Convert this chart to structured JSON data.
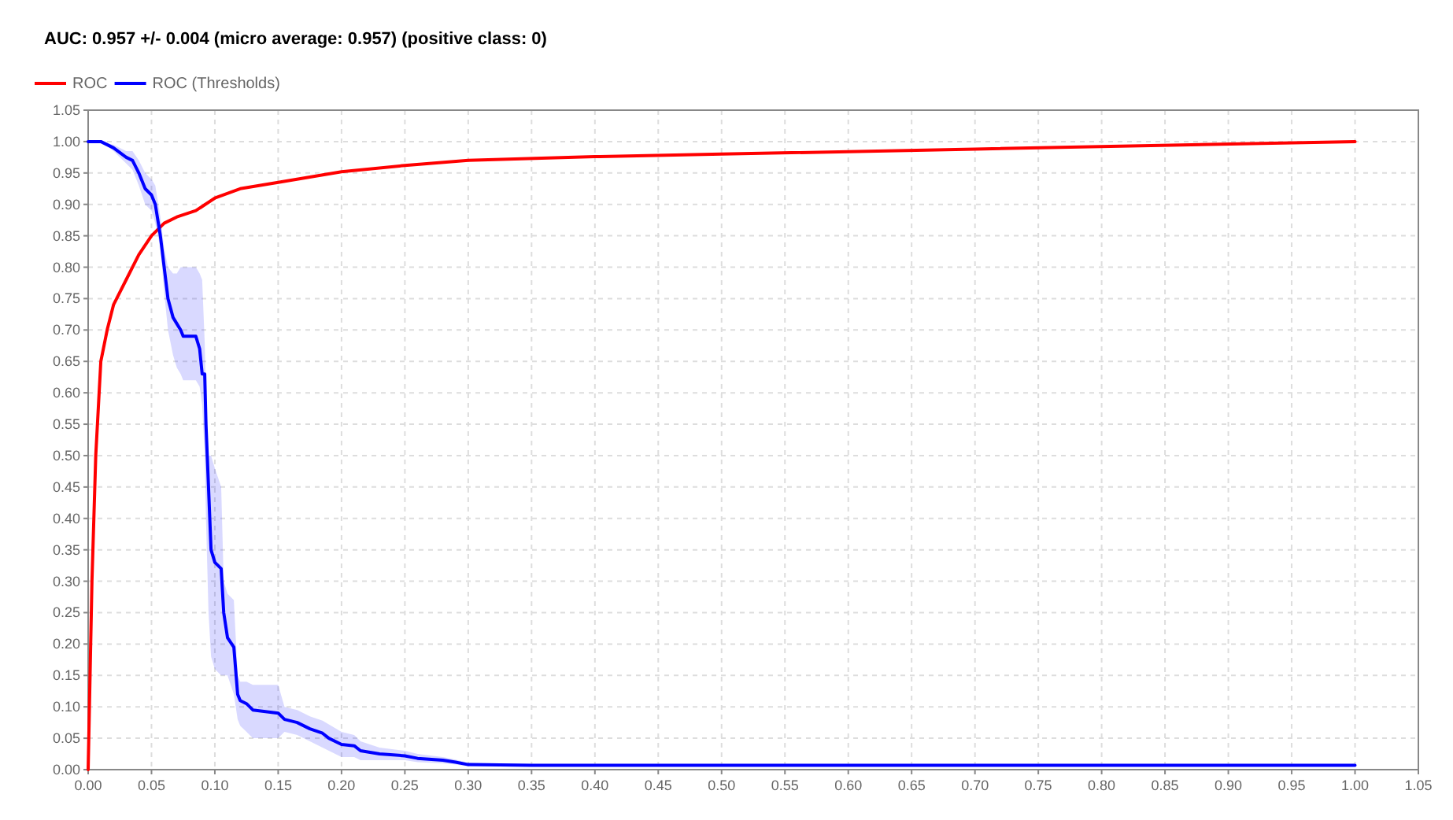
{
  "chart_data": {
    "type": "line",
    "title": "AUC: 0.957 +/- 0.004 (micro average: 0.957) (positive class: 0)",
    "xlim": [
      0,
      1.05
    ],
    "ylim": [
      0,
      1.05
    ],
    "xticks": [
      {
        "value": 0,
        "label": "0.00"
      },
      0.05,
      {
        "value": 0.1,
        "label": "0.10"
      },
      0.15,
      {
        "value": 0.2,
        "label": "0.20"
      },
      0.25,
      {
        "value": 0.3,
        "label": "0.30"
      },
      0.35,
      {
        "value": 0.4,
        "label": "0.40"
      },
      0.45,
      {
        "value": 0.5,
        "label": "0.50"
      },
      0.55,
      {
        "value": 0.6,
        "label": "0.60"
      },
      0.65,
      {
        "value": 0.7,
        "label": "0.70"
      },
      0.75,
      {
        "value": 0.8,
        "label": "0.80"
      },
      0.85,
      {
        "value": 0.9,
        "label": "0.90"
      },
      0.95,
      {
        "value": 1,
        "label": "1.00"
      },
      1.05
    ],
    "yticks": [
      {
        "value": 0,
        "label": "0.00"
      },
      0.05,
      {
        "value": 0.1,
        "label": "0.10"
      },
      0.15,
      {
        "value": 0.2,
        "label": "0.20"
      },
      0.25,
      {
        "value": 0.3,
        "label": "0.30"
      },
      0.35,
      {
        "value": 0.4,
        "label": "0.40"
      },
      0.45,
      {
        "value": 0.5,
        "label": "0.50"
      },
      0.55,
      {
        "value": 0.6,
        "label": "0.60"
      },
      0.65,
      {
        "value": 0.7,
        "label": "0.70"
      },
      0.75,
      {
        "value": 0.8,
        "label": "0.80"
      },
      0.85,
      {
        "value": 0.9,
        "label": "0.90"
      },
      0.95,
      {
        "value": 1,
        "label": "1.00"
      },
      1.05
    ],
    "grid": true,
    "legend": "top left",
    "line_style": "solid",
    "marker": "none",
    "series": [
      {
        "name": "ROC",
        "color": "#ff0000",
        "x": [
          0,
          0.003,
          0.006,
          0.01,
          0.015,
          0.02,
          0.03,
          0.04,
          0.05,
          0.06,
          0.07,
          0.085,
          0.1,
          0.12,
          0.15,
          0.2,
          0.25,
          0.3,
          0.4,
          0.5,
          0.7,
          1.0
        ],
        "values": [
          0,
          0.3,
          0.5,
          0.65,
          0.7,
          0.74,
          0.78,
          0.82,
          0.85,
          0.87,
          0.88,
          0.89,
          0.91,
          0.925,
          0.935,
          0.952,
          0.962,
          0.97,
          0.976,
          0.98,
          0.988,
          1.0
        ]
      },
      {
        "name": "ROC (Thresholds)",
        "color": "#0000ff",
        "x": [
          0,
          0.01,
          0.02,
          0.03,
          0.035,
          0.04,
          0.045,
          0.05,
          0.053,
          0.057,
          0.06,
          0.063,
          0.067,
          0.07,
          0.073,
          0.075,
          0.085,
          0.088,
          0.09,
          0.092,
          0.093,
          0.095,
          0.097,
          0.1,
          0.105,
          0.107,
          0.11,
          0.115,
          0.118,
          0.12,
          0.125,
          0.13,
          0.15,
          0.155,
          0.165,
          0.175,
          0.185,
          0.19,
          0.2,
          0.21,
          0.215,
          0.23,
          0.25,
          0.26,
          0.28,
          0.29,
          0.3,
          0.35,
          1.0
        ],
        "values": [
          1.0,
          1.0,
          0.99,
          0.975,
          0.97,
          0.95,
          0.925,
          0.915,
          0.9,
          0.85,
          0.8,
          0.75,
          0.72,
          0.71,
          0.7,
          0.69,
          0.69,
          0.67,
          0.63,
          0.63,
          0.55,
          0.45,
          0.35,
          0.33,
          0.32,
          0.25,
          0.21,
          0.195,
          0.12,
          0.11,
          0.105,
          0.095,
          0.09,
          0.08,
          0.075,
          0.065,
          0.058,
          0.05,
          0.04,
          0.038,
          0.03,
          0.025,
          0.022,
          0.018,
          0.015,
          0.012,
          0.008,
          0.007,
          0.007
        ],
        "lower": [
          1.0,
          1.0,
          0.985,
          0.965,
          0.955,
          0.93,
          0.9,
          0.89,
          0.87,
          0.83,
          0.76,
          0.7,
          0.66,
          0.64,
          0.63,
          0.62,
          0.62,
          0.61,
          0.58,
          0.5,
          0.4,
          0.25,
          0.18,
          0.16,
          0.15,
          0.15,
          0.15,
          0.12,
          0.08,
          0.07,
          0.06,
          0.05,
          0.05,
          0.06,
          0.055,
          0.045,
          0.035,
          0.03,
          0.02,
          0.02,
          0.015,
          0.015,
          0.015,
          0.012,
          0.01,
          0.008,
          0.005,
          0.005,
          0.005
        ],
        "upper": [
          1.0,
          1.0,
          0.995,
          0.985,
          0.985,
          0.97,
          0.95,
          0.94,
          0.93,
          0.88,
          0.83,
          0.8,
          0.79,
          0.79,
          0.8,
          0.8,
          0.8,
          0.79,
          0.78,
          0.68,
          0.6,
          0.5,
          0.5,
          0.48,
          0.45,
          0.3,
          0.28,
          0.27,
          0.15,
          0.14,
          0.14,
          0.135,
          0.135,
          0.1,
          0.095,
          0.085,
          0.078,
          0.072,
          0.06,
          0.055,
          0.045,
          0.035,
          0.03,
          0.025,
          0.02,
          0.016,
          0.011,
          0.009,
          0.009
        ]
      }
    ]
  }
}
